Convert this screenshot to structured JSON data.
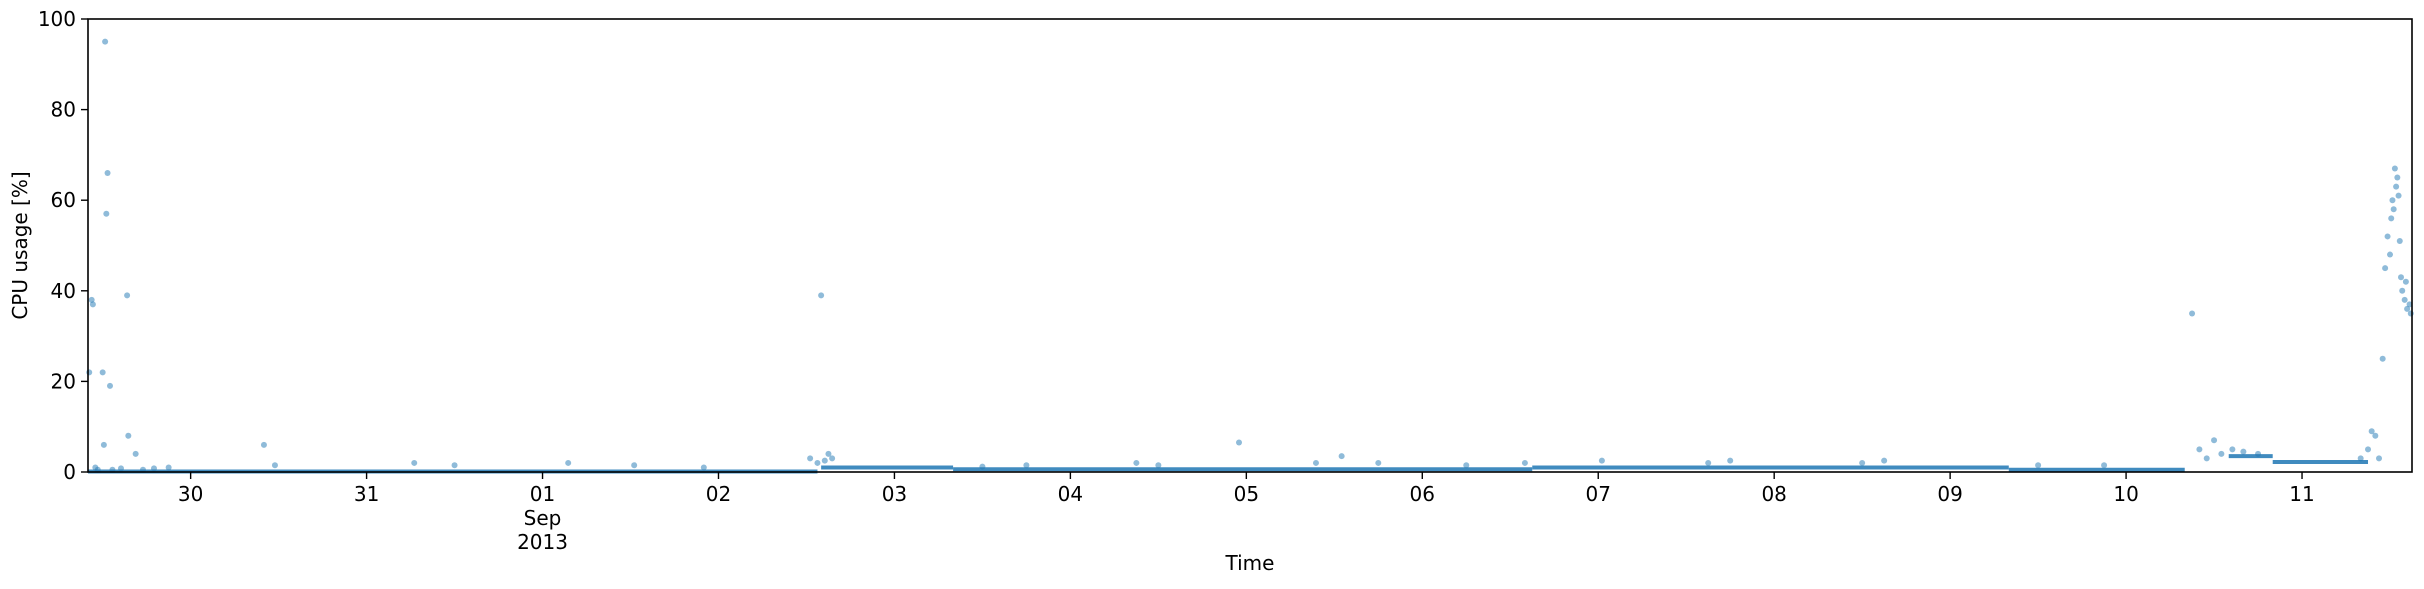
{
  "chart_data": {
    "type": "scatter",
    "title": "",
    "xlabel": "Time",
    "ylabel": "CPU usage [%]",
    "xlim": [
      "2013-08-29T10:00",
      "2013-09-11T15:00"
    ],
    "ylim": [
      0,
      100
    ],
    "yticks": [
      0,
      20,
      40,
      60,
      80,
      100
    ],
    "xticks": [
      {
        "date": "2013-08-30",
        "label": "30",
        "sub": ""
      },
      {
        "date": "2013-08-31",
        "label": "31",
        "sub": ""
      },
      {
        "date": "2013-09-01",
        "label": "01",
        "sub": "Sep\n2013"
      },
      {
        "date": "2013-09-02",
        "label": "02",
        "sub": ""
      },
      {
        "date": "2013-09-03",
        "label": "03",
        "sub": ""
      },
      {
        "date": "2013-09-04",
        "label": "04",
        "sub": ""
      },
      {
        "date": "2013-09-05",
        "label": "05",
        "sub": ""
      },
      {
        "date": "2013-09-06",
        "label": "06",
        "sub": ""
      },
      {
        "date": "2013-09-07",
        "label": "07",
        "sub": ""
      },
      {
        "date": "2013-09-08",
        "label": "08",
        "sub": ""
      },
      {
        "date": "2013-09-09",
        "label": "09",
        "sub": ""
      },
      {
        "date": "2013-09-10",
        "label": "10",
        "sub": ""
      },
      {
        "date": "2013-09-11",
        "label": "11",
        "sub": ""
      }
    ],
    "grid": false,
    "legend": "none",
    "marker_color": "#1f77b4",
    "baseline_segments": [
      {
        "from": "2013-08-29T10:00",
        "to": "2013-09-02T13:30",
        "y": 0.1
      },
      {
        "from": "2013-09-02T14:00",
        "to": "2013-09-03T08:00",
        "y": 1.0
      },
      {
        "from": "2013-09-03T08:00",
        "to": "2013-09-06T15:00",
        "y": 0.6
      },
      {
        "from": "2013-09-06T15:00",
        "to": "2013-09-09T08:00",
        "y": 1.0
      },
      {
        "from": "2013-09-09T08:00",
        "to": "2013-09-10T08:00",
        "y": 0.5
      },
      {
        "from": "2013-09-10T14:00",
        "to": "2013-09-10T20:00",
        "y": 3.5
      },
      {
        "from": "2013-09-10T20:00",
        "to": "2013-09-11T09:00",
        "y": 2.2
      }
    ],
    "points": [
      [
        "2013-08-29T10:10",
        22
      ],
      [
        "2013-08-29T10:30",
        38
      ],
      [
        "2013-08-29T10:40",
        37
      ],
      [
        "2013-08-29T11:00",
        1
      ],
      [
        "2013-08-29T11:20",
        0.5
      ],
      [
        "2013-08-29T12:00",
        22
      ],
      [
        "2013-08-29T12:10",
        6
      ],
      [
        "2013-08-29T12:20",
        95
      ],
      [
        "2013-08-29T12:40",
        66
      ],
      [
        "2013-08-29T12:30",
        57
      ],
      [
        "2013-08-29T13:00",
        19
      ],
      [
        "2013-08-29T13:20",
        0.5
      ],
      [
        "2013-08-29T14:30",
        0.8
      ],
      [
        "2013-08-29T15:20",
        39
      ],
      [
        "2013-08-29T15:30",
        8
      ],
      [
        "2013-08-29T16:30",
        4
      ],
      [
        "2013-08-29T17:30",
        0.5
      ],
      [
        "2013-08-29T19:00",
        0.8
      ],
      [
        "2013-08-29T21:00",
        1.0
      ],
      [
        "2013-08-30T10:00",
        6
      ],
      [
        "2013-08-30T11:30",
        1.5
      ],
      [
        "2013-08-31T06:30",
        2
      ],
      [
        "2013-08-31T12:00",
        1.5
      ],
      [
        "2013-09-01T03:30",
        2
      ],
      [
        "2013-09-01T12:30",
        1.5
      ],
      [
        "2013-09-01T22:00",
        1
      ],
      [
        "2013-09-02T12:30",
        3
      ],
      [
        "2013-09-02T13:30",
        2
      ],
      [
        "2013-09-02T14:00",
        39
      ],
      [
        "2013-09-02T14:30",
        2.5
      ],
      [
        "2013-09-02T15:00",
        4
      ],
      [
        "2013-09-02T15:30",
        3
      ],
      [
        "2013-09-03T12:00",
        1.2
      ],
      [
        "2013-09-03T18:00",
        1.5
      ],
      [
        "2013-09-04T09:00",
        2
      ],
      [
        "2013-09-04T12:00",
        1.5
      ],
      [
        "2013-09-04T23:00",
        6.5
      ],
      [
        "2013-09-05T09:30",
        2
      ],
      [
        "2013-09-05T13:00",
        3.5
      ],
      [
        "2013-09-05T18:00",
        2
      ],
      [
        "2013-09-06T06:00",
        1.5
      ],
      [
        "2013-09-06T14:00",
        2
      ],
      [
        "2013-09-07T00:30",
        2.5
      ],
      [
        "2013-09-07T15:00",
        2
      ],
      [
        "2013-09-07T18:00",
        2.5
      ],
      [
        "2013-09-08T12:00",
        2
      ],
      [
        "2013-09-08T15:00",
        2.5
      ],
      [
        "2013-09-09T12:00",
        1.5
      ],
      [
        "2013-09-09T21:00",
        1.5
      ],
      [
        "2013-09-10T09:00",
        35
      ],
      [
        "2013-09-10T10:00",
        5
      ],
      [
        "2013-09-10T11:00",
        3
      ],
      [
        "2013-09-10T12:00",
        7
      ],
      [
        "2013-09-10T13:00",
        4
      ],
      [
        "2013-09-10T14:30",
        5
      ],
      [
        "2013-09-10T16:00",
        4.5
      ],
      [
        "2013-09-10T18:00",
        4
      ],
      [
        "2013-09-11T08:00",
        3
      ],
      [
        "2013-09-11T09:00",
        5
      ],
      [
        "2013-09-11T09:30",
        9
      ],
      [
        "2013-09-11T10:00",
        8
      ],
      [
        "2013-09-11T10:30",
        3
      ],
      [
        "2013-09-11T11:00",
        25
      ],
      [
        "2013-09-11T11:20",
        45
      ],
      [
        "2013-09-11T11:40",
        52
      ],
      [
        "2013-09-11T12:00",
        48
      ],
      [
        "2013-09-11T12:10",
        56
      ],
      [
        "2013-09-11T12:20",
        60
      ],
      [
        "2013-09-11T12:30",
        58
      ],
      [
        "2013-09-11T12:40",
        67
      ],
      [
        "2013-09-11T12:50",
        63
      ],
      [
        "2013-09-11T13:00",
        65
      ],
      [
        "2013-09-11T13:10",
        61
      ],
      [
        "2013-09-11T13:20",
        51
      ],
      [
        "2013-09-11T13:30",
        43
      ],
      [
        "2013-09-11T13:40",
        40
      ],
      [
        "2013-09-11T14:00",
        38
      ],
      [
        "2013-09-11T14:10",
        42
      ],
      [
        "2013-09-11T14:20",
        36
      ],
      [
        "2013-09-11T14:40",
        37
      ],
      [
        "2013-09-11T14:50",
        35
      ]
    ]
  }
}
